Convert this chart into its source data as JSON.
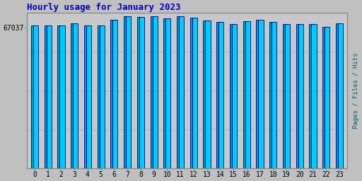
{
  "title": "Hourly usage for January 2023",
  "title_color": "#0000CC",
  "title_fontsize": 9,
  "background_color": "#C0C0C0",
  "plot_bg_color": "#C8C8C8",
  "xlabel_values": [
    0,
    1,
    2,
    3,
    4,
    5,
    6,
    7,
    8,
    9,
    10,
    11,
    12,
    13,
    14,
    15,
    16,
    17,
    18,
    19,
    20,
    21,
    22,
    23
  ],
  "ylabel_label": "Pages / Files / Hits",
  "ylabel_color": "#006060",
  "ytick_label": "67037",
  "ytick_color": "#000000",
  "bar_values": [
    68000,
    68000,
    68000,
    69200,
    68000,
    68000,
    70800,
    72500,
    72000,
    72500,
    71300,
    72500,
    71600,
    70500,
    69600,
    68800,
    69900,
    70900,
    69700,
    68800,
    68800,
    68700,
    67200,
    68900
  ],
  "bar_max": 74000,
  "bar_face_color": "#00CCFF",
  "bar_edge_color": "#000080",
  "bar_width": 0.85,
  "ylim_max": 74000,
  "grid_color": "#B0B0B0",
  "tick_fontsize": 7,
  "font_family": "monospace"
}
